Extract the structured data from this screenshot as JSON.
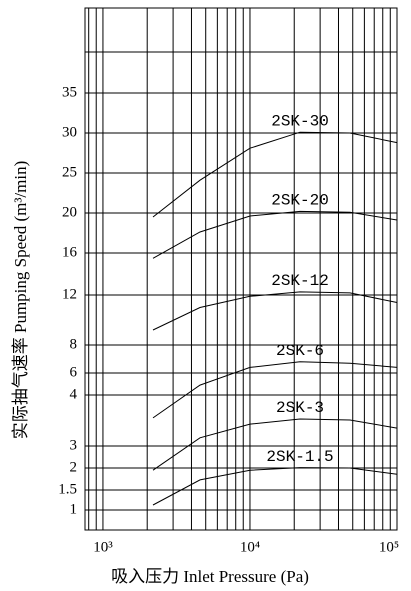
{
  "chart_data": {
    "type": "line",
    "x_label": "吸入压力  Inlet Pressure (Pa)",
    "y_label": "实际抽气速率  Pumping Speed (m³/min)",
    "log_x": true,
    "xlim": [
      755,
      100000
    ],
    "xticks": [
      {
        "value": 1000,
        "label": "10³"
      },
      {
        "value": 10000,
        "label": "10⁴"
      },
      {
        "value": 100000,
        "label": "10⁵"
      }
    ],
    "xgrid": [
      800,
      900,
      2000,
      3000,
      4000,
      5000,
      6000,
      7000,
      8000,
      9000,
      20000,
      30000,
      40000,
      50000,
      60000,
      70000,
      80000,
      90000
    ],
    "yticks": [
      35,
      30,
      25,
      20,
      16,
      12,
      8,
      6,
      4,
      3,
      2,
      1.5,
      1
    ],
    "x": [
      2190,
      4570,
      10000,
      21900,
      47900,
      100000
    ],
    "series": [
      {
        "name": "2SK-30",
        "color": "#000000",
        "values": [
          19.6,
          24.1,
          28.1,
          30.1,
          30.0,
          28.8
        ]
      },
      {
        "name": "2SK-20",
        "color": "#000000",
        "values": [
          15.5,
          18.1,
          19.7,
          20.2,
          20.1,
          19.3
        ]
      },
      {
        "name": "2SK-12",
        "color": "#000000",
        "values": [
          9.2,
          11.0,
          11.9,
          12.3,
          12.2,
          11.4
        ]
      },
      {
        "name": "2SK-6",
        "color": "#000000",
        "values": [
          3.55,
          4.9,
          6.4,
          6.8,
          6.7,
          6.4
        ]
      },
      {
        "name": "2SK-3",
        "color": "#000000",
        "values": [
          1.95,
          3.16,
          3.43,
          3.53,
          3.51,
          3.35
        ]
      },
      {
        "name": "2SK-1.5",
        "color": "#000000",
        "values": [
          1.125,
          1.73,
          1.95,
          2.02,
          2.0,
          1.86
        ]
      }
    ]
  }
}
